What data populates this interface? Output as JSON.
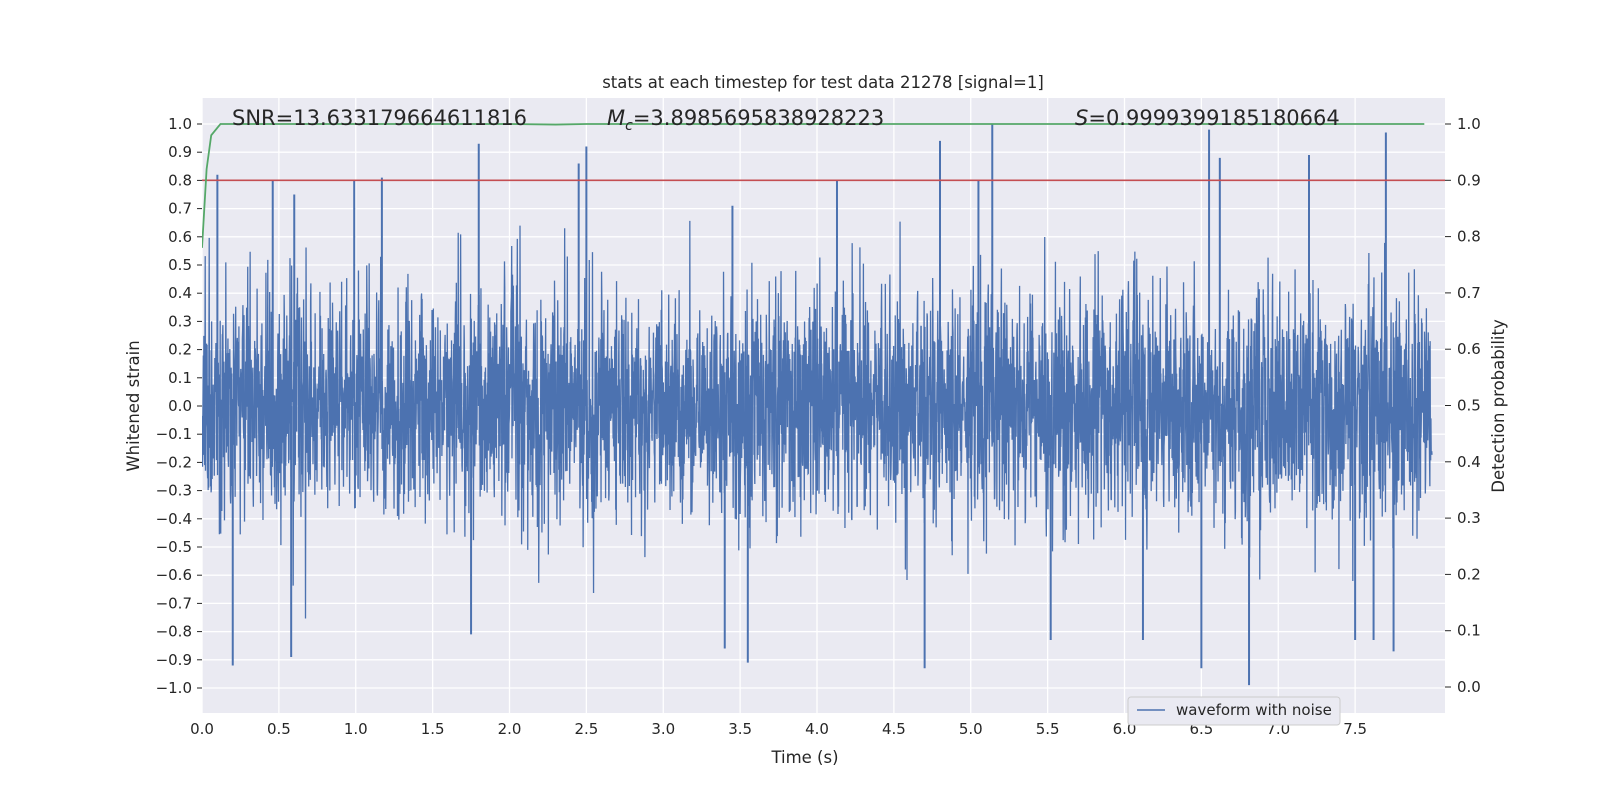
{
  "chart_data": {
    "type": "line",
    "title": "stats at each timestep for test data 21278 [signal=1]",
    "xlabel": "Time (s)",
    "ylabel": "Whitened strain",
    "y2label": "Detection probability",
    "xlim": [
      0.0,
      8.0
    ],
    "ylim": [
      -1.1,
      1.1
    ],
    "y2lim": [
      -0.05,
      1.05
    ],
    "xticks": [
      "0.0",
      "0.5",
      "1.0",
      "1.5",
      "2.0",
      "2.5",
      "3.0",
      "3.5",
      "4.0",
      "4.5",
      "5.0",
      "5.5",
      "6.0",
      "6.5",
      "7.0",
      "7.5"
    ],
    "yticks": [
      "1.0",
      "0.9",
      "0.8",
      "0.7",
      "0.6",
      "0.5",
      "0.4",
      "0.3",
      "0.2",
      "0.1",
      "0.0",
      "−0.1",
      "−0.2",
      "−0.3",
      "−0.4",
      "−0.5",
      "−0.6",
      "−0.7",
      "−0.8",
      "−0.9",
      "−1.0"
    ],
    "y2ticks": [
      "1.0",
      "0.9",
      "0.8",
      "0.7",
      "0.6",
      "0.5",
      "0.4",
      "0.3",
      "0.2",
      "0.1",
      "0.0"
    ],
    "grid": true,
    "annotations": {
      "snr": "SNR=13.633179664611816",
      "mc_symbol": "M",
      "mc_sub": "c",
      "mc_value": "=3.8985695838928223",
      "s_symbol": "S",
      "s_value": "=0.9999399185180664"
    },
    "threshold": {
      "value": 0.9,
      "axis": "y2",
      "color": "#c44e52"
    },
    "series": [
      {
        "name": "waveform with noise",
        "axis": "y",
        "color": "#4c72b0",
        "description": "dense whitened strain noise, samples spanning 0 to 8 s",
        "peaks_high": [
          [
            0.1,
            0.82
          ],
          [
            0.46,
            0.8
          ],
          [
            0.6,
            0.75
          ],
          [
            0.99,
            0.8
          ],
          [
            1.17,
            0.81
          ],
          [
            1.8,
            0.93
          ],
          [
            2.45,
            0.86
          ],
          [
            2.5,
            0.92
          ],
          [
            3.45,
            0.71
          ],
          [
            4.13,
            0.8
          ],
          [
            4.8,
            0.94
          ],
          [
            5.05,
            0.8
          ],
          [
            5.14,
            1.0
          ],
          [
            6.55,
            0.98
          ],
          [
            6.62,
            0.88
          ],
          [
            7.2,
            0.89
          ],
          [
            7.7,
            0.97
          ]
        ],
        "peaks_low": [
          [
            0.2,
            -0.92
          ],
          [
            0.58,
            -0.89
          ],
          [
            1.75,
            -0.81
          ],
          [
            3.4,
            -0.86
          ],
          [
            3.55,
            -0.91
          ],
          [
            4.7,
            -0.93
          ],
          [
            5.52,
            -0.83
          ],
          [
            6.12,
            -0.83
          ],
          [
            6.5,
            -0.93
          ],
          [
            6.81,
            -0.99
          ],
          [
            7.5,
            -0.83
          ],
          [
            7.62,
            -0.83
          ],
          [
            7.75,
            -0.87
          ]
        ]
      },
      {
        "name": "detection probability",
        "axis": "y2",
        "color": "#55a868",
        "x": [
          0.0,
          0.03,
          0.06,
          0.12,
          0.4,
          1.0,
          1.5,
          2.0,
          2.3,
          2.5,
          3.0,
          4.0,
          5.0,
          6.0,
          7.0,
          7.95
        ],
        "values": [
          0.78,
          0.92,
          0.98,
          1.0,
          1.0,
          1.0,
          1.0,
          1.0,
          0.999,
          1.0,
          1.0,
          1.0,
          1.0,
          1.0,
          1.0,
          1.0
        ]
      }
    ],
    "legend": {
      "entries": [
        "waveform with noise"
      ],
      "location": "lower-right"
    }
  }
}
